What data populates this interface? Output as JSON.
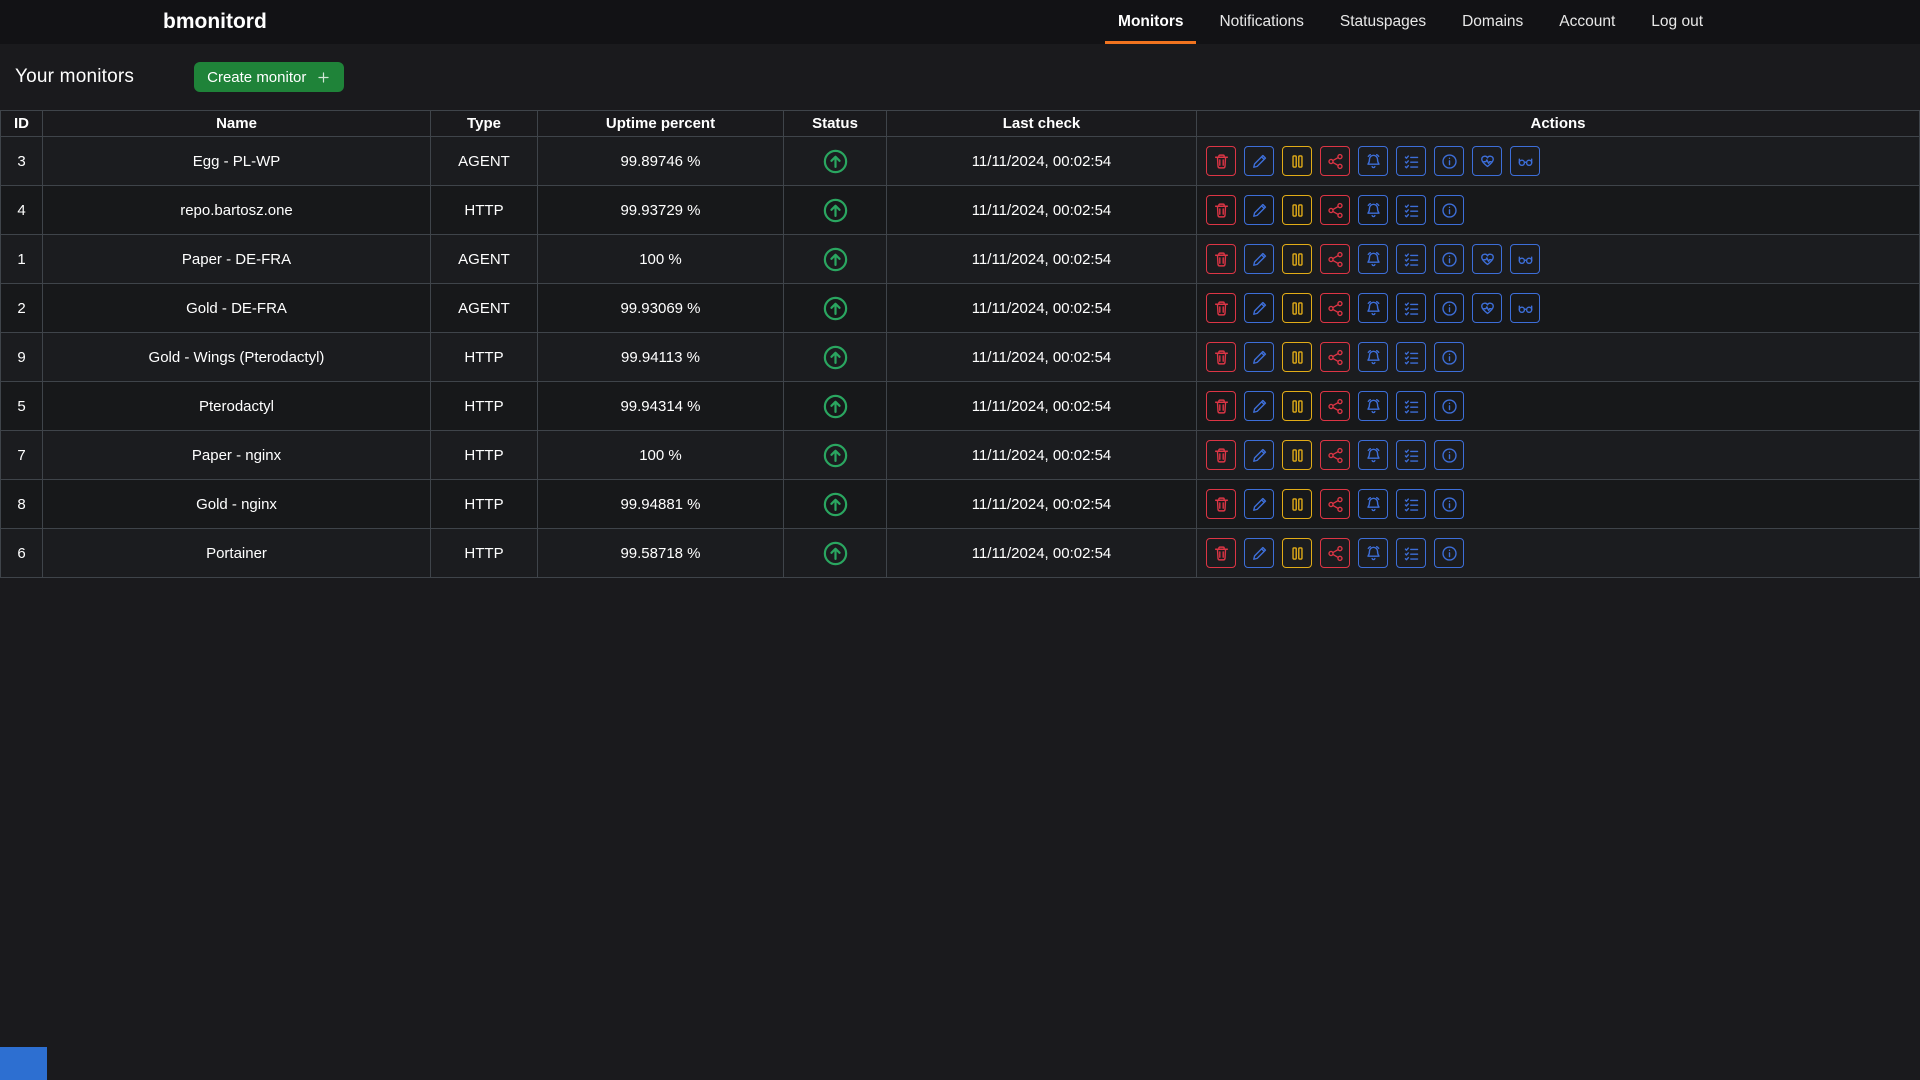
{
  "navbar": {
    "brand": "bmonitord",
    "items": [
      {
        "label": "Monitors",
        "active": true
      },
      {
        "label": "Notifications",
        "active": false
      },
      {
        "label": "Statuspages",
        "active": false
      },
      {
        "label": "Domains",
        "active": false
      },
      {
        "label": "Account",
        "active": false
      },
      {
        "label": "Log out",
        "active": false
      }
    ]
  },
  "page": {
    "title": "Your monitors",
    "create_button_label": "Create monitor",
    "create_button_icon": "plus-icon"
  },
  "table": {
    "columns": [
      "ID",
      "Name",
      "Type",
      "Uptime percent",
      "Status",
      "Last check",
      "Actions"
    ],
    "rows": [
      {
        "id": "3",
        "name": "Egg - PL-WP",
        "type": "AGENT",
        "uptime": "99.89746 %",
        "status": "up",
        "last_check": "11/11/2024, 00:02:54",
        "actions": "agent"
      },
      {
        "id": "4",
        "name": "repo.bartosz.one",
        "type": "HTTP",
        "uptime": "99.93729 %",
        "status": "up",
        "last_check": "11/11/2024, 00:02:54",
        "actions": "http"
      },
      {
        "id": "1",
        "name": "Paper - DE-FRA",
        "type": "AGENT",
        "uptime": "100 %",
        "status": "up",
        "last_check": "11/11/2024, 00:02:54",
        "actions": "agent"
      },
      {
        "id": "2",
        "name": "Gold - DE-FRA",
        "type": "AGENT",
        "uptime": "99.93069 %",
        "status": "up",
        "last_check": "11/11/2024, 00:02:54",
        "actions": "agent"
      },
      {
        "id": "9",
        "name": "Gold - Wings (Pterodactyl)",
        "type": "HTTP",
        "uptime": "99.94113 %",
        "status": "up",
        "last_check": "11/11/2024, 00:02:54",
        "actions": "http"
      },
      {
        "id": "5",
        "name": "Pterodactyl",
        "type": "HTTP",
        "uptime": "99.94314 %",
        "status": "up",
        "last_check": "11/11/2024, 00:02:54",
        "actions": "http"
      },
      {
        "id": "7",
        "name": "Paper - nginx",
        "type": "HTTP",
        "uptime": "100 %",
        "status": "up",
        "last_check": "11/11/2024, 00:02:54",
        "actions": "http"
      },
      {
        "id": "8",
        "name": "Gold - nginx",
        "type": "HTTP",
        "uptime": "99.94881 %",
        "status": "up",
        "last_check": "11/11/2024, 00:02:54",
        "actions": "http"
      },
      {
        "id": "6",
        "name": "Portainer",
        "type": "HTTP",
        "uptime": "99.58718 %",
        "status": "up",
        "last_check": "11/11/2024, 00:02:54",
        "actions": "http"
      }
    ]
  },
  "action_sets": {
    "http": [
      {
        "name": "delete",
        "icon": "trash-icon",
        "color": "danger"
      },
      {
        "name": "edit",
        "icon": "pencil-icon",
        "color": "primary"
      },
      {
        "name": "pause",
        "icon": "pause-icon",
        "color": "warning"
      },
      {
        "name": "share",
        "icon": "share-icon",
        "color": "danger"
      },
      {
        "name": "alerts",
        "icon": "bell-icon",
        "color": "primary"
      },
      {
        "name": "checks",
        "icon": "checklist-icon",
        "color": "primary"
      },
      {
        "name": "info",
        "icon": "info-icon",
        "color": "primary"
      }
    ],
    "agent_extra": [
      {
        "name": "heartbeat",
        "icon": "heartbeat-icon",
        "color": "primary"
      },
      {
        "name": "live-view",
        "icon": "glasses-icon",
        "color": "primary"
      }
    ]
  },
  "status_icons": {
    "up": "status-up-icon"
  },
  "colors": {
    "accent_orange": "#f0731f",
    "success_button": "#1f8339",
    "status_up": "#2aa660",
    "danger": "#dc3545",
    "primary": "#3d6ed8",
    "warning": "#e2ac17",
    "corner_badge": "#2d6fd1",
    "navbar_bg": "#121215",
    "page_bg": "#1a1a1d"
  }
}
